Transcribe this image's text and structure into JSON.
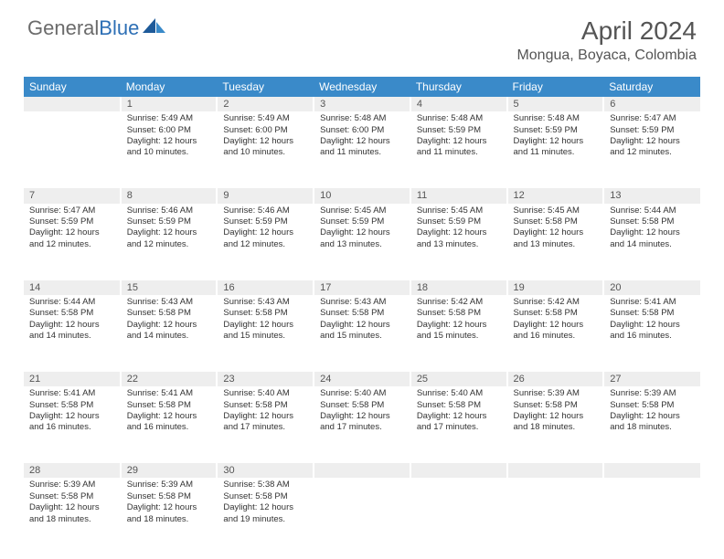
{
  "logo": {
    "part1": "General",
    "part2": "Blue"
  },
  "title": "April 2024",
  "location": "Mongua, Boyaca, Colombia",
  "colors": {
    "header_bg": "#3a8ac9",
    "header_text": "#ffffff",
    "daynum_bg": "#eeeeee",
    "text": "#333333",
    "logo_gray": "#6b6b6b",
    "logo_blue": "#2d6fb5"
  },
  "weekdays": [
    "Sunday",
    "Monday",
    "Tuesday",
    "Wednesday",
    "Thursday",
    "Friday",
    "Saturday"
  ],
  "weeks": [
    [
      null,
      {
        "n": "1",
        "sr": "Sunrise: 5:49 AM",
        "ss": "Sunset: 6:00 PM",
        "d1": "Daylight: 12 hours",
        "d2": "and 10 minutes."
      },
      {
        "n": "2",
        "sr": "Sunrise: 5:49 AM",
        "ss": "Sunset: 6:00 PM",
        "d1": "Daylight: 12 hours",
        "d2": "and 10 minutes."
      },
      {
        "n": "3",
        "sr": "Sunrise: 5:48 AM",
        "ss": "Sunset: 6:00 PM",
        "d1": "Daylight: 12 hours",
        "d2": "and 11 minutes."
      },
      {
        "n": "4",
        "sr": "Sunrise: 5:48 AM",
        "ss": "Sunset: 5:59 PM",
        "d1": "Daylight: 12 hours",
        "d2": "and 11 minutes."
      },
      {
        "n": "5",
        "sr": "Sunrise: 5:48 AM",
        "ss": "Sunset: 5:59 PM",
        "d1": "Daylight: 12 hours",
        "d2": "and 11 minutes."
      },
      {
        "n": "6",
        "sr": "Sunrise: 5:47 AM",
        "ss": "Sunset: 5:59 PM",
        "d1": "Daylight: 12 hours",
        "d2": "and 12 minutes."
      }
    ],
    [
      {
        "n": "7",
        "sr": "Sunrise: 5:47 AM",
        "ss": "Sunset: 5:59 PM",
        "d1": "Daylight: 12 hours",
        "d2": "and 12 minutes."
      },
      {
        "n": "8",
        "sr": "Sunrise: 5:46 AM",
        "ss": "Sunset: 5:59 PM",
        "d1": "Daylight: 12 hours",
        "d2": "and 12 minutes."
      },
      {
        "n": "9",
        "sr": "Sunrise: 5:46 AM",
        "ss": "Sunset: 5:59 PM",
        "d1": "Daylight: 12 hours",
        "d2": "and 12 minutes."
      },
      {
        "n": "10",
        "sr": "Sunrise: 5:45 AM",
        "ss": "Sunset: 5:59 PM",
        "d1": "Daylight: 12 hours",
        "d2": "and 13 minutes."
      },
      {
        "n": "11",
        "sr": "Sunrise: 5:45 AM",
        "ss": "Sunset: 5:59 PM",
        "d1": "Daylight: 12 hours",
        "d2": "and 13 minutes."
      },
      {
        "n": "12",
        "sr": "Sunrise: 5:45 AM",
        "ss": "Sunset: 5:58 PM",
        "d1": "Daylight: 12 hours",
        "d2": "and 13 minutes."
      },
      {
        "n": "13",
        "sr": "Sunrise: 5:44 AM",
        "ss": "Sunset: 5:58 PM",
        "d1": "Daylight: 12 hours",
        "d2": "and 14 minutes."
      }
    ],
    [
      {
        "n": "14",
        "sr": "Sunrise: 5:44 AM",
        "ss": "Sunset: 5:58 PM",
        "d1": "Daylight: 12 hours",
        "d2": "and 14 minutes."
      },
      {
        "n": "15",
        "sr": "Sunrise: 5:43 AM",
        "ss": "Sunset: 5:58 PM",
        "d1": "Daylight: 12 hours",
        "d2": "and 14 minutes."
      },
      {
        "n": "16",
        "sr": "Sunrise: 5:43 AM",
        "ss": "Sunset: 5:58 PM",
        "d1": "Daylight: 12 hours",
        "d2": "and 15 minutes."
      },
      {
        "n": "17",
        "sr": "Sunrise: 5:43 AM",
        "ss": "Sunset: 5:58 PM",
        "d1": "Daylight: 12 hours",
        "d2": "and 15 minutes."
      },
      {
        "n": "18",
        "sr": "Sunrise: 5:42 AM",
        "ss": "Sunset: 5:58 PM",
        "d1": "Daylight: 12 hours",
        "d2": "and 15 minutes."
      },
      {
        "n": "19",
        "sr": "Sunrise: 5:42 AM",
        "ss": "Sunset: 5:58 PM",
        "d1": "Daylight: 12 hours",
        "d2": "and 16 minutes."
      },
      {
        "n": "20",
        "sr": "Sunrise: 5:41 AM",
        "ss": "Sunset: 5:58 PM",
        "d1": "Daylight: 12 hours",
        "d2": "and 16 minutes."
      }
    ],
    [
      {
        "n": "21",
        "sr": "Sunrise: 5:41 AM",
        "ss": "Sunset: 5:58 PM",
        "d1": "Daylight: 12 hours",
        "d2": "and 16 minutes."
      },
      {
        "n": "22",
        "sr": "Sunrise: 5:41 AM",
        "ss": "Sunset: 5:58 PM",
        "d1": "Daylight: 12 hours",
        "d2": "and 16 minutes."
      },
      {
        "n": "23",
        "sr": "Sunrise: 5:40 AM",
        "ss": "Sunset: 5:58 PM",
        "d1": "Daylight: 12 hours",
        "d2": "and 17 minutes."
      },
      {
        "n": "24",
        "sr": "Sunrise: 5:40 AM",
        "ss": "Sunset: 5:58 PM",
        "d1": "Daylight: 12 hours",
        "d2": "and 17 minutes."
      },
      {
        "n": "25",
        "sr": "Sunrise: 5:40 AM",
        "ss": "Sunset: 5:58 PM",
        "d1": "Daylight: 12 hours",
        "d2": "and 17 minutes."
      },
      {
        "n": "26",
        "sr": "Sunrise: 5:39 AM",
        "ss": "Sunset: 5:58 PM",
        "d1": "Daylight: 12 hours",
        "d2": "and 18 minutes."
      },
      {
        "n": "27",
        "sr": "Sunrise: 5:39 AM",
        "ss": "Sunset: 5:58 PM",
        "d1": "Daylight: 12 hours",
        "d2": "and 18 minutes."
      }
    ],
    [
      {
        "n": "28",
        "sr": "Sunrise: 5:39 AM",
        "ss": "Sunset: 5:58 PM",
        "d1": "Daylight: 12 hours",
        "d2": "and 18 minutes."
      },
      {
        "n": "29",
        "sr": "Sunrise: 5:39 AM",
        "ss": "Sunset: 5:58 PM",
        "d1": "Daylight: 12 hours",
        "d2": "and 18 minutes."
      },
      {
        "n": "30",
        "sr": "Sunrise: 5:38 AM",
        "ss": "Sunset: 5:58 PM",
        "d1": "Daylight: 12 hours",
        "d2": "and 19 minutes."
      },
      null,
      null,
      null,
      null
    ]
  ]
}
